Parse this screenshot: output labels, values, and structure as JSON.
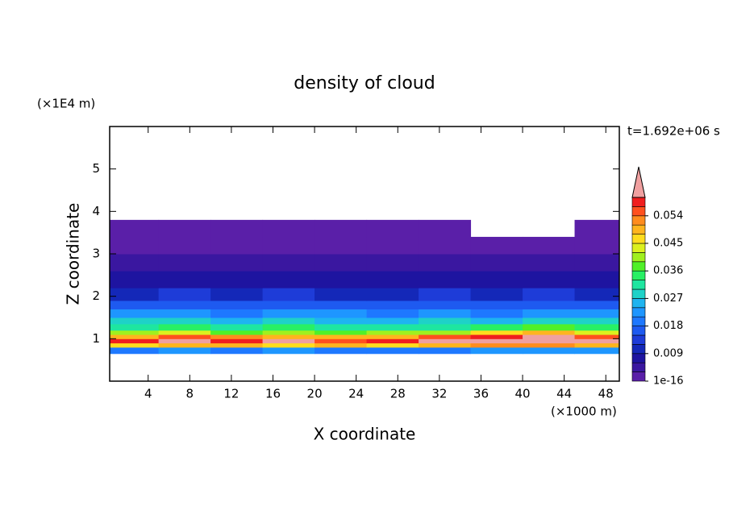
{
  "chart_data": {
    "type": "contour",
    "title": "density of cloud",
    "x_label": "X coordinate",
    "y_label": "Z coordinate",
    "x_unit": "(×1000 m)",
    "y_unit": "(×1E4 m)",
    "annotation": "t=1.692e+06 s",
    "xlim": [
      0.3,
      49.3
    ],
    "ylim": [
      0,
      6
    ],
    "xticks": [
      4,
      8,
      12,
      16,
      20,
      24,
      28,
      32,
      36,
      40,
      44,
      48
    ],
    "yticks": [
      1,
      2,
      3,
      4,
      5
    ],
    "x_edges": [
      0.3,
      5,
      10,
      15,
      20,
      25,
      30,
      35,
      40,
      45,
      49.3
    ],
    "y_edges": [
      0.65,
      0.8,
      0.9,
      1.0,
      1.1,
      1.2,
      1.35,
      1.5,
      1.7,
      1.9,
      2.2,
      2.6,
      3.0,
      3.4,
      3.8
    ],
    "z": [
      [
        0.02,
        0.022,
        0.02,
        0.021,
        0.02,
        0.019,
        0.02,
        0.022,
        0.023,
        0.021
      ],
      [
        0.046,
        0.05,
        0.048,
        0.047,
        0.049,
        0.046,
        0.05,
        0.052,
        0.053,
        0.05
      ],
      [
        0.058,
        0.062,
        0.057,
        0.06,
        0.056,
        0.058,
        0.061,
        0.063,
        0.064,
        0.06
      ],
      [
        0.05,
        0.055,
        0.052,
        0.05,
        0.048,
        0.05,
        0.054,
        0.058,
        0.062,
        0.056
      ],
      [
        0.04,
        0.042,
        0.038,
        0.04,
        0.037,
        0.039,
        0.041,
        0.045,
        0.05,
        0.043
      ],
      [
        0.032,
        0.034,
        0.03,
        0.033,
        0.031,
        0.03,
        0.032,
        0.034,
        0.036,
        0.033
      ],
      [
        0.027,
        0.028,
        0.025,
        0.027,
        0.026,
        0.025,
        0.027,
        0.026,
        0.028,
        0.027
      ],
      [
        0.021,
        0.022,
        0.02,
        0.022,
        0.021,
        0.02,
        0.021,
        0.02,
        0.022,
        0.021
      ],
      [
        0.016,
        0.017,
        0.015,
        0.016,
        0.016,
        0.015,
        0.016,
        0.015,
        0.016,
        0.016
      ],
      [
        0.011,
        0.012,
        0.011,
        0.012,
        0.011,
        0.011,
        0.012,
        0.011,
        0.012,
        0.011
      ],
      [
        0.008,
        0.008,
        0.007,
        0.008,
        0.008,
        0.007,
        0.008,
        0.007,
        0.008,
        0.008
      ],
      [
        0.004,
        0.004,
        0.004,
        0.004,
        0.004,
        0.004,
        0.004,
        0.004,
        0.004,
        0.004
      ],
      [
        0.002,
        0.002,
        0.002,
        0.002,
        0.002,
        0.002,
        0.002,
        0.002,
        0.002,
        0.002
      ],
      [
        0.001,
        0.001,
        0.001,
        0.001,
        0.001,
        0.001,
        0.001,
        null,
        null,
        0.001
      ]
    ],
    "levels": [
      1e-16,
      0.003,
      0.006,
      0.009,
      0.012,
      0.015,
      0.018,
      0.021,
      0.024,
      0.027,
      0.03,
      0.033,
      0.036,
      0.039,
      0.042,
      0.045,
      0.048,
      0.051,
      0.054,
      0.057,
      0.06
    ],
    "colors": [
      "#5a1fa8",
      "#3a17a0",
      "#1e14a0",
      "#1428b8",
      "#1e3cd8",
      "#1e5af0",
      "#1e78ff",
      "#1e96ff",
      "#1eb4f0",
      "#1ed2c8",
      "#1ee6a0",
      "#28f064",
      "#50f028",
      "#a0f01e",
      "#dcf01e",
      "#ffdc1e",
      "#ffb41e",
      "#ff8c1e",
      "#ff501e",
      "#f01e1e"
    ],
    "extend_color": "#f0a0a0",
    "colorbar_ticks": [
      1e-16,
      0.009,
      0.018,
      0.027,
      0.036,
      0.045,
      0.054
    ]
  }
}
